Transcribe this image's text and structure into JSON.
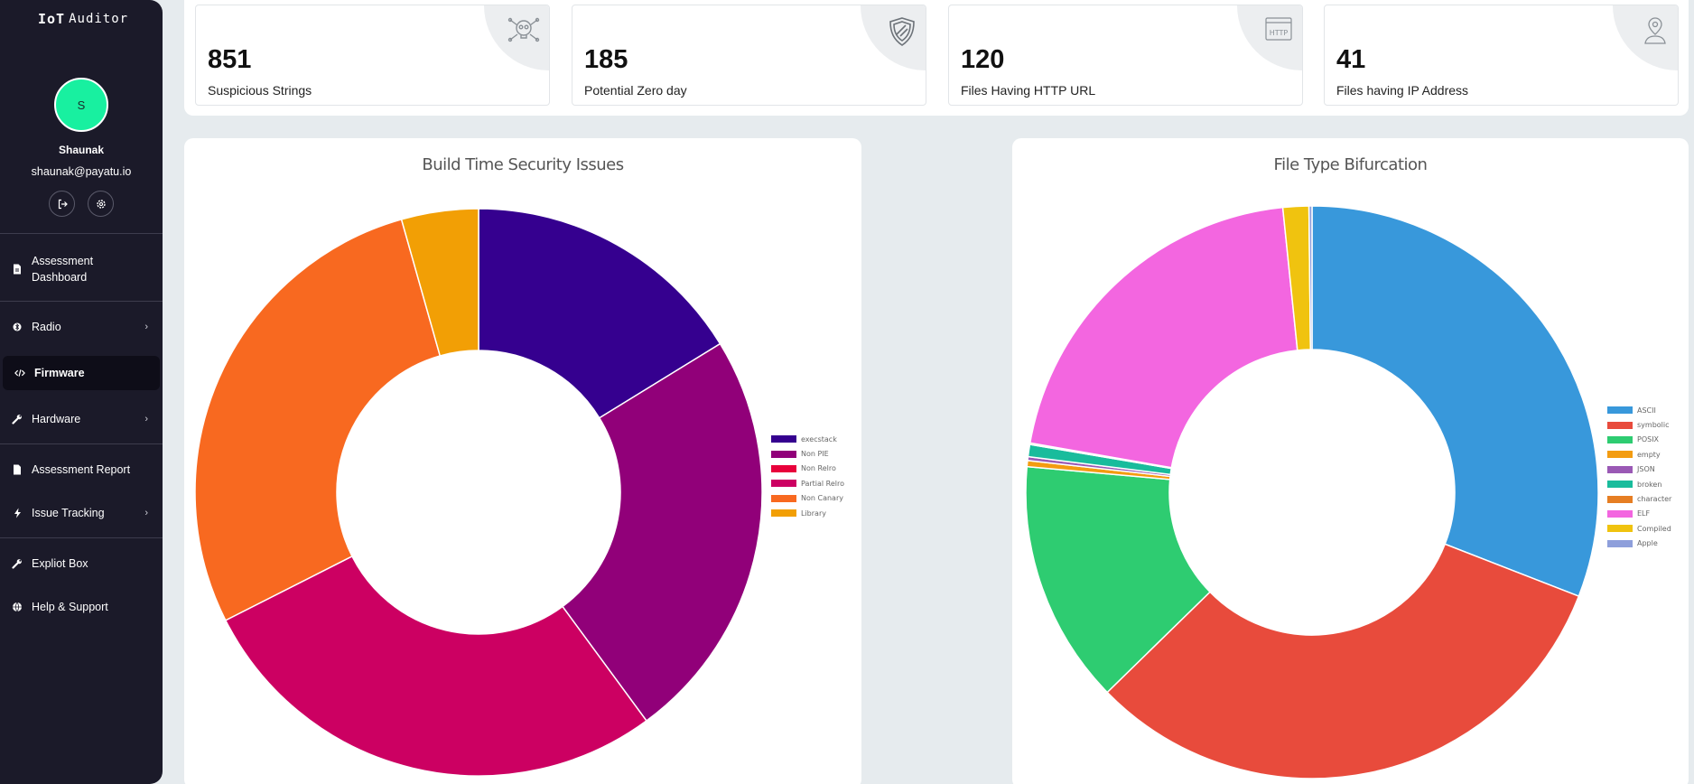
{
  "sidebar": {
    "brand_mark": "IoT",
    "brand_text": "Auditor",
    "avatar_initial": "S",
    "user_name": "Shaunak",
    "user_email": "shaunak@payatu.io",
    "nav": [
      {
        "label": "Assessment Dashboard",
        "icon": "file-icon",
        "has_chevron": false,
        "active": false
      },
      {
        "label": "Radio",
        "icon": "bluetooth-icon",
        "has_chevron": true,
        "active": false
      },
      {
        "label": "Firmware",
        "icon": "code-icon",
        "has_chevron": false,
        "active": true
      },
      {
        "label": "Hardware",
        "icon": "wrench-icon",
        "has_chevron": true,
        "active": false
      },
      {
        "label": "Assessment Report",
        "icon": "document-icon",
        "has_chevron": false,
        "active": false
      },
      {
        "label": "Issue Tracking",
        "icon": "bolt-icon",
        "has_chevron": true,
        "active": false
      },
      {
        "label": "Expliot Box",
        "icon": "wrench-icon",
        "has_chevron": false,
        "active": false
      },
      {
        "label": "Help & Support",
        "icon": "globe-icon",
        "has_chevron": false,
        "active": false
      }
    ]
  },
  "stats": [
    {
      "value": "851",
      "label": "Suspicious Strings",
      "icon": "skull-crossbones-icon"
    },
    {
      "value": "185",
      "label": "Potential Zero day",
      "icon": "shield-icon"
    },
    {
      "value": "120",
      "label": "Files Having HTTP URL",
      "icon": "http-browser-icon"
    },
    {
      "value": "41",
      "label": "Files having IP Address",
      "icon": "person-location-icon"
    }
  ],
  "chart_data": [
    {
      "type": "pie",
      "variant": "doughnut",
      "title": "Build Time Security Issues",
      "legend_position": "right",
      "categories": [
        "execstack",
        "Non PIE",
        "Non Relro",
        "Partial Relro",
        "Non Canary",
        "Library"
      ],
      "values": [
        37,
        54,
        0,
        63,
        64,
        10
      ],
      "colors": [
        "#35008f",
        "#910079",
        "#e8003b",
        "#cc0062",
        "#f86920",
        "#f29f05"
      ]
    },
    {
      "type": "pie",
      "variant": "doughnut",
      "title": "File Type Bifurcation",
      "legend_position": "right",
      "categories": [
        "ASCII",
        "symbolic",
        "POSIX",
        "empty",
        "JSON",
        "broken",
        "character",
        "ELF",
        "Compiled",
        "Apple"
      ],
      "values": [
        360,
        370,
        160,
        4,
        2.5,
        8,
        1,
        240,
        17,
        2
      ],
      "colors": [
        "#3898db",
        "#e84b3c",
        "#2ecc71",
        "#f39c11",
        "#9a59b5",
        "#19bc9c",
        "#e67e23",
        "#f366e0",
        "#f0c30f",
        "#8e9fdb"
      ]
    }
  ]
}
